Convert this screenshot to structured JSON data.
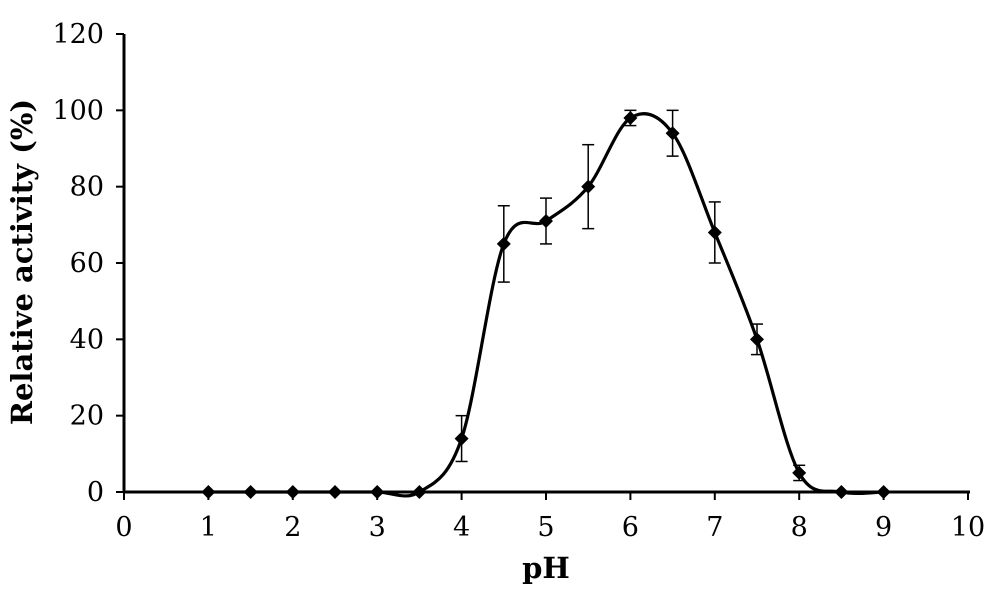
{
  "chart_data": {
    "type": "line",
    "title": "",
    "xlabel": "pH",
    "ylabel": "Relative activity (%)",
    "xlim": [
      0,
      10
    ],
    "ylim": [
      0,
      120
    ],
    "x_ticks": [
      "0",
      "1",
      "2",
      "3",
      "4",
      "5",
      "6",
      "7",
      "8",
      "9",
      "10"
    ],
    "y_ticks": [
      "0",
      "20",
      "40",
      "60",
      "80",
      "100",
      "120"
    ],
    "grid": false,
    "legend": "none",
    "series": [
      {
        "smooth": true,
        "marker": "diamond",
        "color": "#000000",
        "x": [
          1,
          1.5,
          2,
          2.5,
          3,
          3.5,
          4,
          4.5,
          5,
          5.5,
          6,
          6.5,
          7,
          7.5,
          8,
          8.5,
          9
        ],
        "y": [
          0,
          0,
          0,
          0,
          0,
          0,
          14,
          65,
          71,
          80,
          98,
          94,
          68,
          40,
          5,
          0,
          0
        ],
        "error": [
          0,
          0,
          0,
          0,
          0,
          0,
          6,
          10,
          6,
          11,
          2,
          6,
          8,
          4,
          2,
          0,
          0
        ]
      }
    ]
  }
}
